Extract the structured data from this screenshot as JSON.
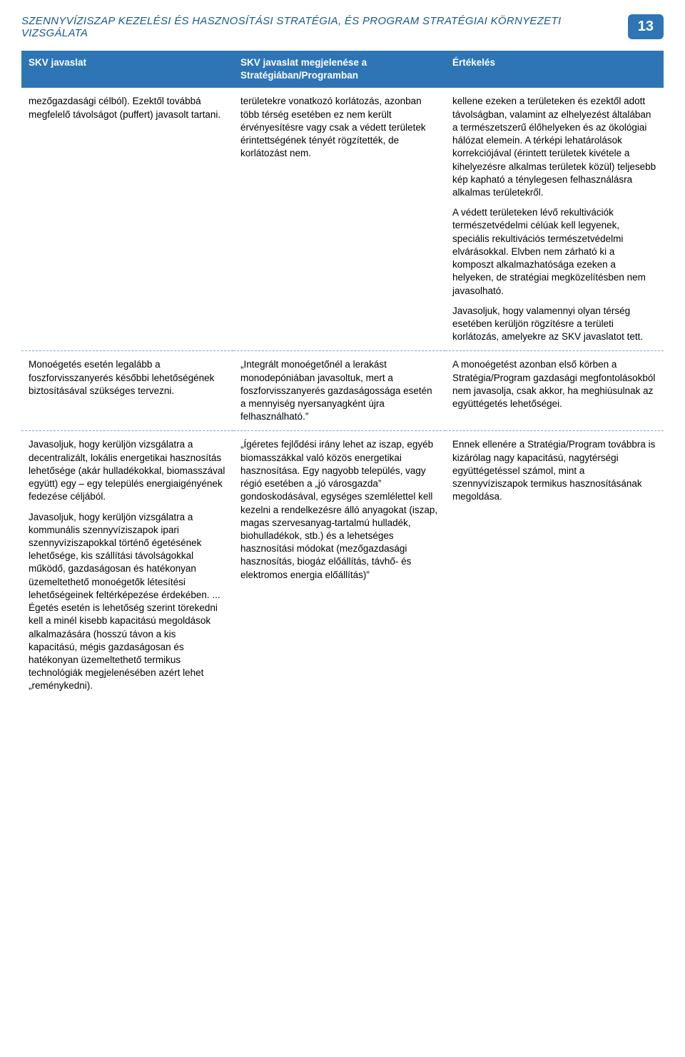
{
  "header": {
    "title": "SZENNYVÍZISZAP KEZELÉSI ÉS HASZNOSÍTÁSI STRATÉGIA, ÉS PROGRAM STRATÉGIAI KÖRNYEZETI VIZSGÁLATA",
    "page_number": "13"
  },
  "table": {
    "columns": [
      "SKV javaslat",
      "SKV javaslat megjelenése a Stratégiában/Programban",
      "Értékelés"
    ],
    "column_widths": [
      "33%",
      "33%",
      "34%"
    ],
    "header_bg": "#2e75b6",
    "header_color": "#ffffff",
    "row_border_color": "#7fa8cf",
    "font_size_pt": 10,
    "rows": [
      {
        "c1": [
          "mezőgazdasági célból). Ezektől továbbá megfelelő távolságot (puffert) javasolt tartani."
        ],
        "c2": [
          "területekre vonatkozó korlátozás, azonban több térség esetében ez nem került érvényesítésre vagy csak a védett területek érintettségének tényét rögzítették, de korlátozást nem."
        ],
        "c3": [
          "kellene ezeken a területeken és ezektől adott távolságban, valamint az elhelyezést általában a természetszerű élőhelyeken és az ökológiai hálózat elemein. A térképi lehatárolások korrekciójával (érintett területek kivétele a kihelyezésre alkalmas területek közül) teljesebb kép kapható a ténylegesen felhasználásra alkalmas területekről.",
          "A védett területeken lévő rekultivációk természetvédelmi célúak kell legyenek, speciális rekultivációs természetvédelmi elvárásokkal. Elvben nem zárható ki a komposzt alkalmazhatósága ezeken a helyeken, de stratégiai megközelítésben nem javasolható.",
          "Javasoljuk, hogy valamennyi olyan térség esetében kerüljön rögzítésre a területi korlátozás, amelyekre az SKV javaslatot tett."
        ]
      },
      {
        "c1": [
          "Monoégetés esetén legalább a foszforvisszanyerés későbbi lehetőségének biztosításával szükséges tervezni."
        ],
        "c2": [
          "„Integrált monoégetőnél a lerakást monodepóniában javasoltuk, mert a foszforvisszanyerés gazdaságossága esetén a mennyiség nyersanyagként újra felhasználható.”"
        ],
        "c3": [
          "A monoégetést azonban első körben a Stratégia/Program gazdasági megfontolásokból nem javasolja, csak akkor, ha meghiúsulnak az együttégetés lehetőségei."
        ]
      },
      {
        "c1": [
          "Javasoljuk, hogy kerüljön vizsgálatra a decentralizált, lokális energetikai hasznosítás lehetősége (akár hulladékokkal, biomasszával együtt) egy – egy település energiaigényének fedezése céljából.",
          "Javasoljuk, hogy kerüljön vizsgálatra a kommunális szennyvíziszapok ipari szennyvíziszapokkal történő égetésének lehetősége, kis szállítási távolságokkal működő, gazdaságosan és hatékonyan üzemeltethető monoégetők létesítési lehetőségeinek feltérképezése érdekében. ... Égetés esetén is lehetőség szerint törekedni kell a minél kisebb kapacitású megoldások alkalmazására (hosszú távon a kis kapacitású, mégis gazdaságosan és hatékonyan üzemeltethető termikus technológiák megjelenésében azért lehet „reménykedni)."
        ],
        "c2": [
          "„Ígéretes fejlődési irány lehet az iszap, egyéb biomasszákkal való közös energetikai hasznosítása. Egy nagyobb település, vagy régió esetében a „jó városgazda” gondoskodásával, egységes szemlélettel kell kezelni a rendelkezésre álló anyagokat (iszap, magas szervesanyag-tartalmú hulladék, biohulladékok, stb.) és a lehetséges hasznosítási módokat (mezőgazdasági hasznosítás, biogáz előállítás, távhő- és elektromos energia előállítás)”"
        ],
        "c3": [
          "Ennek ellenére a Stratégia/Program továbbra is kizárólag nagy kapacitású, nagytérségi együttégetéssel számol, mint a szennyvíziszapok termikus hasznosításának megoldása."
        ]
      }
    ]
  },
  "colors": {
    "title_color": "#1a5a8a",
    "badge_bg": "#2e75b6",
    "badge_text": "#ffffff",
    "body_text": "#000000",
    "background": "#ffffff"
  }
}
